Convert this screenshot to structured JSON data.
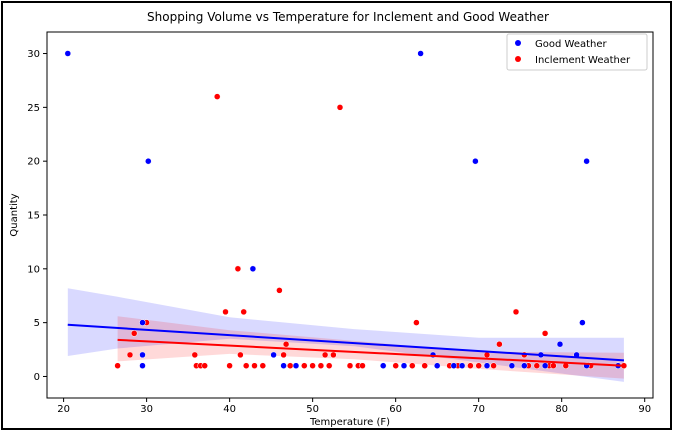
{
  "chart_data": {
    "type": "scatter",
    "title": "Shopping Volume vs Temperature for Inclement and Good Weather",
    "xlabel": "Temperature (F)",
    "ylabel": "Quantity",
    "xlim": [
      18,
      91
    ],
    "ylim": [
      -2,
      32
    ],
    "x_ticks": [
      20,
      30,
      40,
      50,
      60,
      70,
      80,
      90
    ],
    "y_ticks": [
      0,
      5,
      10,
      15,
      20,
      25,
      30
    ],
    "grid": false,
    "legend_position": "upper right",
    "series": [
      {
        "name": "Good Weather",
        "color": "#0000ff",
        "points": [
          [
            20.5,
            30
          ],
          [
            29.5,
            5
          ],
          [
            29.5,
            2
          ],
          [
            29.5,
            1
          ],
          [
            30.2,
            20
          ],
          [
            42.8,
            10
          ],
          [
            45.3,
            2
          ],
          [
            46.5,
            1
          ],
          [
            48.0,
            1
          ],
          [
            58.5,
            1
          ],
          [
            61.0,
            1
          ],
          [
            63.0,
            30
          ],
          [
            64.5,
            2
          ],
          [
            65.0,
            1
          ],
          [
            67.0,
            1
          ],
          [
            68.0,
            1
          ],
          [
            69.6,
            20
          ],
          [
            71.0,
            1
          ],
          [
            74.0,
            1
          ],
          [
            75.5,
            1
          ],
          [
            77.5,
            2
          ],
          [
            78.0,
            1
          ],
          [
            79.8,
            3
          ],
          [
            81.8,
            2
          ],
          [
            82.5,
            5
          ],
          [
            83.0,
            20
          ],
          [
            83.0,
            1
          ],
          [
            86.8,
            1
          ]
        ],
        "regression": {
          "x_start": 20.5,
          "y_start": 4.8,
          "x_end": 87.5,
          "y_end": 1.5
        },
        "ci_band": {
          "x": [
            20.5,
            26.5,
            40,
            55,
            70,
            87.5
          ],
          "upper": [
            8.2,
            7.4,
            5.5,
            4.4,
            3.6,
            3.6
          ],
          "lower": [
            1.9,
            2.6,
            3.5,
            2.8,
            1.3,
            -0.5
          ]
        }
      },
      {
        "name": "Inclement Weather",
        "color": "#ff0000",
        "points": [
          [
            26.5,
            1
          ],
          [
            28.0,
            2
          ],
          [
            28.5,
            4
          ],
          [
            30.0,
            5
          ],
          [
            35.8,
            2
          ],
          [
            36.0,
            1
          ],
          [
            36.5,
            1
          ],
          [
            37.0,
            1
          ],
          [
            38.5,
            26
          ],
          [
            39.5,
            6
          ],
          [
            40.0,
            1
          ],
          [
            41.0,
            10
          ],
          [
            41.3,
            2
          ],
          [
            41.7,
            6
          ],
          [
            42.0,
            1
          ],
          [
            43.0,
            1
          ],
          [
            44.0,
            1
          ],
          [
            46.0,
            8
          ],
          [
            46.5,
            2
          ],
          [
            46.8,
            3
          ],
          [
            47.3,
            1
          ],
          [
            49.0,
            1
          ],
          [
            50.0,
            1
          ],
          [
            51.0,
            1
          ],
          [
            51.5,
            2
          ],
          [
            52.0,
            1
          ],
          [
            52.5,
            2
          ],
          [
            53.3,
            25
          ],
          [
            54.5,
            1
          ],
          [
            55.5,
            1
          ],
          [
            56.0,
            1
          ],
          [
            60.0,
            1
          ],
          [
            62.0,
            1
          ],
          [
            62.5,
            5
          ],
          [
            63.5,
            1
          ],
          [
            65.0,
            1
          ],
          [
            66.5,
            1
          ],
          [
            67.5,
            1
          ],
          [
            69.0,
            1
          ],
          [
            70.0,
            1
          ],
          [
            71.0,
            2
          ],
          [
            71.8,
            1
          ],
          [
            72.5,
            3
          ],
          [
            74.5,
            6
          ],
          [
            75.5,
            2
          ],
          [
            76.0,
            1
          ],
          [
            77.0,
            1
          ],
          [
            78.0,
            4
          ],
          [
            78.5,
            1
          ],
          [
            79.0,
            1
          ],
          [
            80.5,
            1
          ],
          [
            83.5,
            1
          ],
          [
            87.5,
            1
          ]
        ],
        "regression": {
          "x_start": 26.5,
          "y_start": 3.4,
          "x_end": 87.5,
          "y_end": 1.0
        },
        "ci_band": {
          "x": [
            26.5,
            40,
            55,
            70,
            87.5
          ],
          "upper": [
            5.6,
            4.3,
            3.3,
            2.3,
            2.2
          ],
          "lower": [
            1.4,
            2.1,
            1.6,
            0.7,
            -0.2
          ]
        }
      }
    ]
  }
}
